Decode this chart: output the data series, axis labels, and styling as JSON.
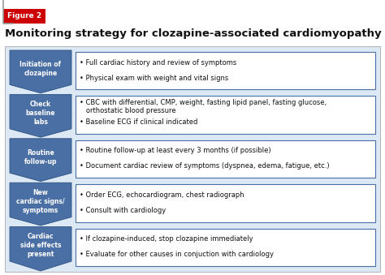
{
  "title": "Monitoring strategy for clozapine-associated cardiomyopathy",
  "figure_label": "Figure 2",
  "outer_bg": "#ffffff",
  "inner_bg": "#dce9f5",
  "arrow_color": "#4a6fa5",
  "arrow_edge_color": "#2d5080",
  "box_border_color": "#4a6fa5",
  "box_fill_color": "#ffffff",
  "title_fontsize": 9.5,
  "label_fontsize": 5.5,
  "content_fontsize": 6.0,
  "rows": [
    {
      "label": "Initiation of\nclozapine",
      "bullets": [
        "• Full cardiac history and review of symptoms",
        "• Physical exam with weight and vital signs"
      ]
    },
    {
      "label": "Check\nbaseline\nlabs",
      "bullets": [
        "• CBC with differential, CMP, weight, fasting lipid panel, fasting glucose,\n   orthostatic blood pressure",
        "• Baseline ECG if clinical indicated"
      ]
    },
    {
      "label": "Routine\nfollow-up",
      "bullets": [
        "• Routine follow-up at least every 3 months (if possible)",
        "• Document cardiac review of symptoms (dyspnea, edema, fatigue, etc.)"
      ]
    },
    {
      "label": "New\ncardiac signs/\nsymptoms",
      "bullets": [
        "• Order ECG, echocardiogram, chest radiograph",
        "• Consult with cardiology"
      ]
    },
    {
      "label": "Cardiac\nside effects\npresent",
      "bullets": [
        "• If clozapine-induced, stop clozapine immediately",
        "• Evaluate for other causes in conjuction with cardiology"
      ]
    }
  ]
}
